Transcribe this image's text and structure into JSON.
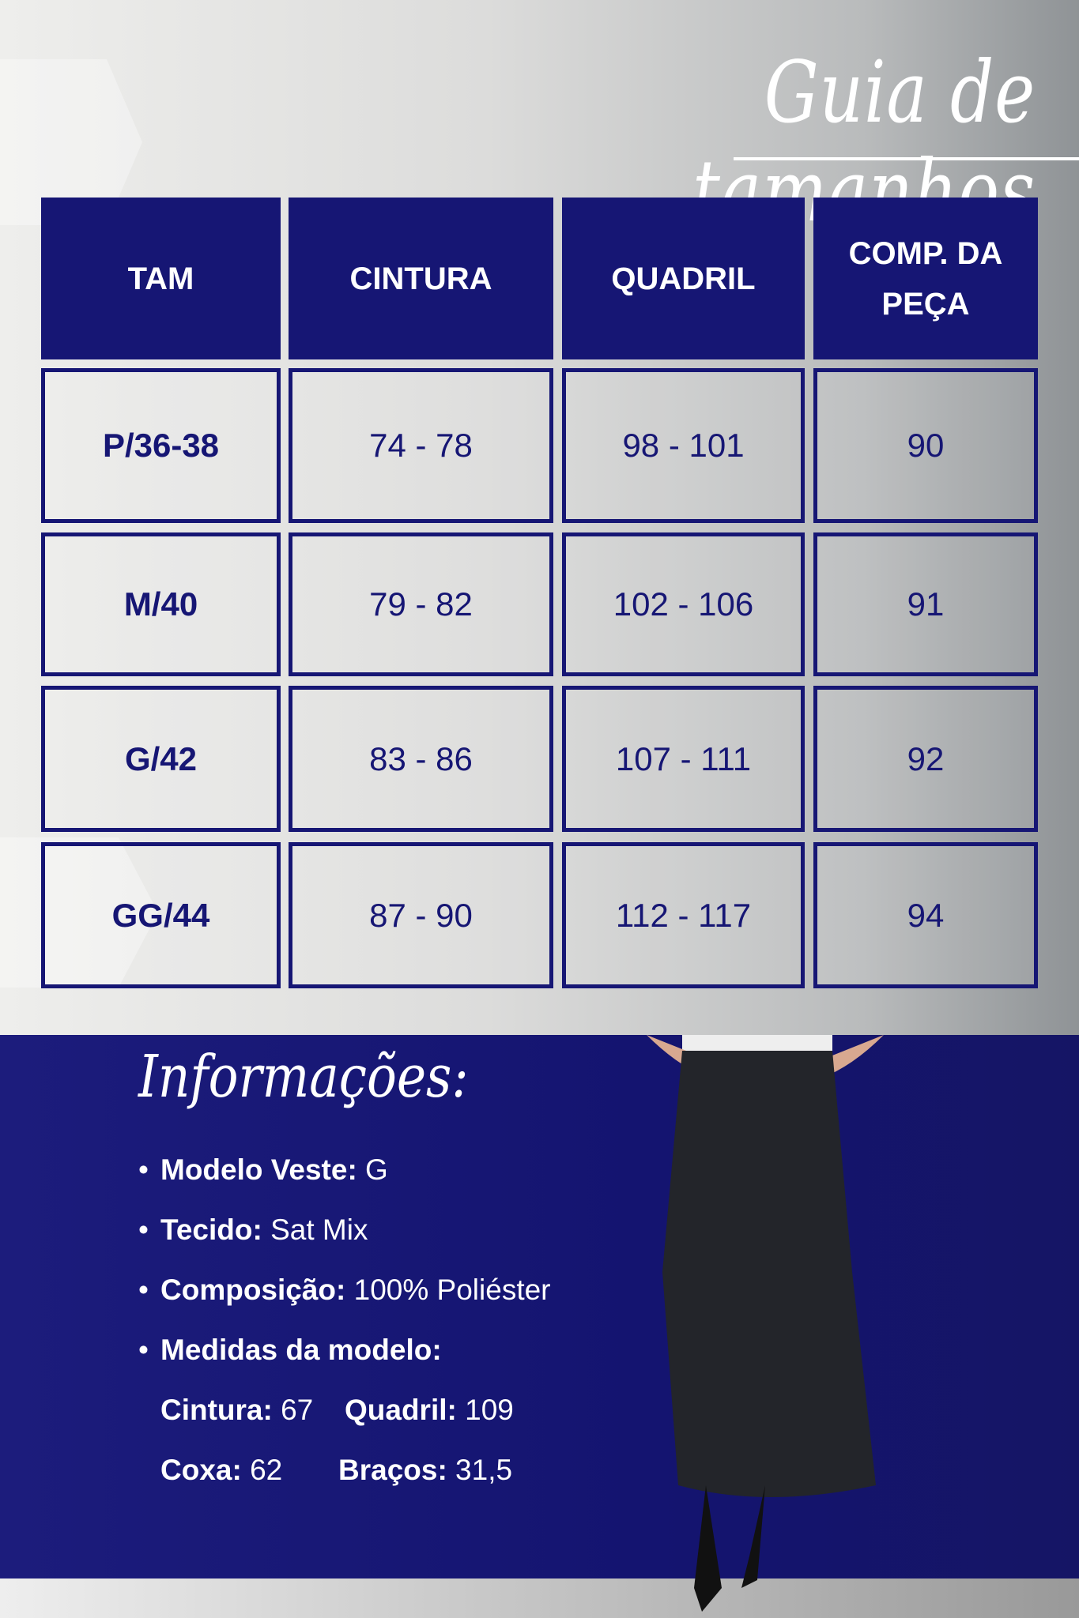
{
  "title": "Guia de tamanhos",
  "table": {
    "headers": [
      "TAM",
      "CINTURA",
      "QUADRIL",
      "COMP. DA PEÇA"
    ],
    "rows": [
      [
        "P/36-38",
        "74 - 78",
        "98 - 101",
        "90"
      ],
      [
        "M/40",
        "79 - 82",
        "102 - 106",
        "91"
      ],
      [
        "G/42",
        "83 - 86",
        "107 - 111",
        "92"
      ],
      [
        "GG/44",
        "87 - 90",
        "112 - 117",
        "94"
      ]
    ]
  },
  "colors": {
    "navy": "#161674",
    "white": "#ffffff"
  },
  "info": {
    "title": "Informações:",
    "items": [
      {
        "label": "Modelo Veste:",
        "value": " G"
      },
      {
        "label": "Tecido:",
        "value": " Sat Mix"
      },
      {
        "label": "Composição:",
        "value": " 100% Poliéster"
      },
      {
        "label": "Medidas da modelo:",
        "value": ""
      }
    ],
    "measures": [
      {
        "label": "Cintura:",
        "value": " 67"
      },
      {
        "label": "Quadril:",
        "value": " 109"
      },
      {
        "label": "Coxa:",
        "value": " 62"
      },
      {
        "label": "Braços:",
        "value": " 31,5"
      }
    ]
  }
}
